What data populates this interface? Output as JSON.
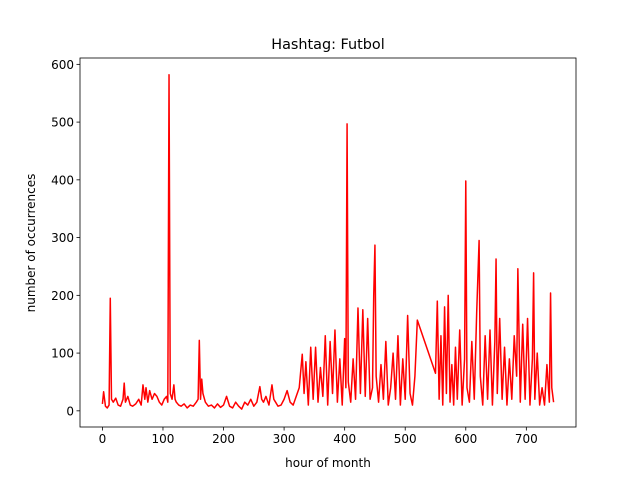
{
  "chart_data": {
    "type": "line",
    "title": "Hashtag: Futbol",
    "x_label": "hour of month",
    "y_label": "number of occurrences",
    "x": [
      0,
      2,
      5,
      8,
      11,
      13,
      15,
      18,
      22,
      26,
      30,
      34,
      36,
      38,
      42,
      46,
      50,
      55,
      60,
      64,
      67,
      70,
      72,
      75,
      78,
      82,
      86,
      90,
      94,
      98,
      102,
      106,
      108,
      110,
      112,
      115,
      118,
      120,
      122,
      126,
      130,
      135,
      140,
      145,
      150,
      155,
      158,
      160,
      162,
      164,
      166,
      170,
      175,
      180,
      185,
      190,
      195,
      200,
      205,
      210,
      215,
      220,
      225,
      230,
      235,
      240,
      245,
      250,
      255,
      260,
      263,
      266,
      270,
      275,
      280,
      283,
      286,
      290,
      295,
      300,
      305,
      310,
      315,
      320,
      325,
      330,
      333,
      336,
      340,
      344,
      348,
      352,
      356,
      360,
      364,
      368,
      372,
      376,
      380,
      384,
      388,
      392,
      396,
      400,
      402,
      404,
      406,
      410,
      414,
      418,
      422,
      426,
      430,
      434,
      438,
      442,
      446,
      448,
      450,
      452,
      456,
      460,
      464,
      468,
      472,
      476,
      480,
      484,
      488,
      492,
      496,
      500,
      504,
      508,
      512,
      516,
      520,
      550,
      553,
      556,
      559,
      562,
      565,
      568,
      571,
      574,
      577,
      580,
      583,
      586,
      590,
      594,
      598,
      600,
      602,
      606,
      610,
      614,
      618,
      622,
      624,
      628,
      632,
      636,
      640,
      644,
      648,
      650,
      652,
      656,
      660,
      664,
      668,
      672,
      676,
      680,
      684,
      686,
      690,
      694,
      698,
      702,
      706,
      710,
      712,
      714,
      718,
      722,
      726,
      730,
      734,
      738,
      740,
      742,
      745
    ],
    "series": [
      {
        "name": "Futbol",
        "color": "#ff0000",
        "values": [
          12,
          33,
          8,
          5,
          10,
          195,
          20,
          15,
          22,
          10,
          8,
          20,
          48,
          15,
          25,
          10,
          8,
          12,
          20,
          10,
          45,
          20,
          40,
          15,
          35,
          20,
          30,
          25,
          15,
          10,
          20,
          25,
          15,
          582,
          30,
          20,
          45,
          20,
          15,
          10,
          8,
          12,
          5,
          10,
          8,
          15,
          20,
          122,
          20,
          55,
          30,
          15,
          8,
          10,
          5,
          12,
          6,
          10,
          25,
          8,
          5,
          15,
          8,
          3,
          15,
          10,
          20,
          8,
          15,
          42,
          20,
          15,
          25,
          10,
          45,
          20,
          15,
          8,
          10,
          20,
          35,
          15,
          10,
          25,
          40,
          98,
          30,
          85,
          10,
          110,
          20,
          110,
          15,
          75,
          25,
          130,
          10,
          120,
          30,
          140,
          15,
          90,
          10,
          125,
          40,
          497,
          50,
          15,
          90,
          20,
          178,
          30,
          175,
          25,
          160,
          20,
          40,
          200,
          287,
          60,
          15,
          80,
          20,
          120,
          10,
          40,
          100,
          20,
          130,
          10,
          90,
          20,
          165,
          30,
          10,
          60,
          157,
          65,
          190,
          20,
          130,
          10,
          180,
          30,
          200,
          15,
          80,
          10,
          110,
          20,
          140,
          10,
          90,
          398,
          40,
          15,
          120,
          20,
          170,
          295,
          60,
          10,
          130,
          20,
          140,
          10,
          120,
          263,
          30,
          160,
          20,
          110,
          10,
          90,
          20,
          130,
          60,
          246,
          15,
          150,
          20,
          160,
          10,
          90,
          239,
          20,
          100,
          10,
          40,
          10,
          80,
          15,
          204,
          40,
          15
        ]
      }
    ],
    "xlim": [
      -37,
      782
    ],
    "ylim": [
      -28,
      611
    ],
    "xticks": [
      0,
      100,
      200,
      300,
      400,
      500,
      600,
      700
    ],
    "yticks": [
      0,
      100,
      200,
      300,
      400,
      500,
      600
    ]
  }
}
